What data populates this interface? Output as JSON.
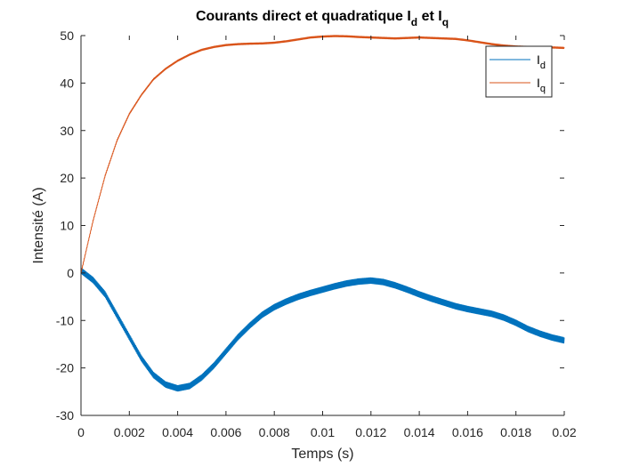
{
  "chart_data": {
    "type": "line",
    "title": {
      "main": "Courants direct et quadratique I",
      "sub1": "d",
      "mid": " et I",
      "sub2": "q"
    },
    "xlabel": "Temps (s)",
    "ylabel": "Intensité (A)",
    "xlim": [
      0,
      0.02
    ],
    "ylim": [
      -30,
      50
    ],
    "xticks": [
      0,
      0.002,
      0.004,
      0.006,
      0.008,
      0.01,
      0.012,
      0.014,
      0.016,
      0.018,
      0.02
    ],
    "xtick_labels": [
      "0",
      "0.002",
      "0.004",
      "0.006",
      "0.008",
      "0.01",
      "0.012",
      "0.014",
      "0.016",
      "0.018",
      "0.02"
    ],
    "yticks": [
      -30,
      -20,
      -10,
      0,
      10,
      20,
      30,
      40,
      50
    ],
    "ytick_labels": [
      "-30",
      "-20",
      "-10",
      "0",
      "10",
      "20",
      "30",
      "40",
      "50"
    ],
    "legend_position": "top-right",
    "series": [
      {
        "name": "I",
        "sub": "d",
        "color": "#0072BD",
        "ripple": 0.6,
        "x": [
          0,
          0.0005,
          0.001,
          0.0015,
          0.002,
          0.0025,
          0.003,
          0.0035,
          0.004,
          0.0045,
          0.005,
          0.0055,
          0.006,
          0.0065,
          0.007,
          0.0075,
          0.008,
          0.0085,
          0.009,
          0.0095,
          0.01,
          0.0105,
          0.011,
          0.0115,
          0.012,
          0.0125,
          0.013,
          0.0135,
          0.014,
          0.0145,
          0.015,
          0.0155,
          0.016,
          0.0165,
          0.017,
          0.0175,
          0.018,
          0.0185,
          0.019,
          0.0195,
          0.02
        ],
        "y": [
          0.5,
          -1.5,
          -4.5,
          -9,
          -13.5,
          -18,
          -21.5,
          -23.5,
          -24.3,
          -23.8,
          -22,
          -19.5,
          -16.5,
          -13.5,
          -11,
          -8.8,
          -7.2,
          -6,
          -5,
          -4.2,
          -3.5,
          -2.8,
          -2.2,
          -1.8,
          -1.6,
          -1.9,
          -2.6,
          -3.5,
          -4.5,
          -5.4,
          -6.2,
          -7,
          -7.6,
          -8.1,
          -8.6,
          -9.4,
          -10.5,
          -11.8,
          -12.8,
          -13.6,
          -14.2
        ]
      },
      {
        "name": "I",
        "sub": "q",
        "color": "#D95319",
        "ripple": 0.15,
        "x": [
          0,
          0.0005,
          0.001,
          0.0015,
          0.002,
          0.0025,
          0.003,
          0.0035,
          0.004,
          0.0045,
          0.005,
          0.0055,
          0.006,
          0.0065,
          0.007,
          0.0075,
          0.008,
          0.0085,
          0.009,
          0.0095,
          0.01,
          0.0105,
          0.011,
          0.0115,
          0.012,
          0.0125,
          0.013,
          0.0135,
          0.014,
          0.0145,
          0.015,
          0.0155,
          0.016,
          0.0165,
          0.017,
          0.0175,
          0.018,
          0.0185,
          0.019,
          0.0195,
          0.02
        ],
        "y": [
          0,
          11,
          20.5,
          28,
          33.5,
          37.5,
          40.8,
          43,
          44.7,
          46,
          47,
          47.6,
          48,
          48.2,
          48.3,
          48.35,
          48.5,
          48.8,
          49.2,
          49.6,
          49.8,
          49.9,
          49.85,
          49.7,
          49.6,
          49.5,
          49.4,
          49.5,
          49.6,
          49.5,
          49.4,
          49.3,
          49,
          48.6,
          48.2,
          47.9,
          47.7,
          47.6,
          47.55,
          47.5,
          47.4
        ]
      }
    ]
  }
}
